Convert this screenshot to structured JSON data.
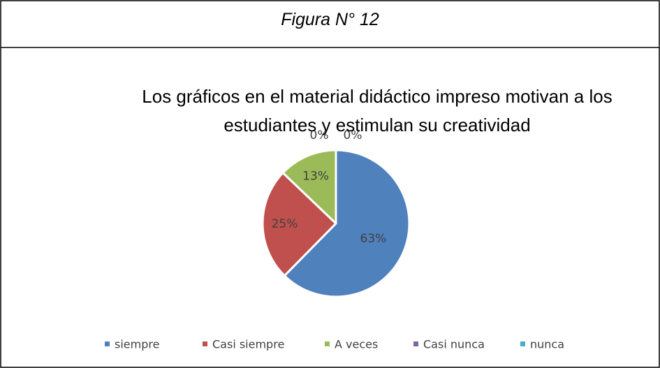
{
  "figure_label": "Figura N° 12",
  "chart_data": {
    "type": "pie",
    "title": "Los gráficos en el material didáctico impreso motivan a los estudiantes y estimulan su creatividad",
    "categories": [
      "siempre",
      "Casi siempre",
      "A veces",
      "Casi nunca",
      "nunca"
    ],
    "values": [
      63,
      25,
      13,
      0,
      0
    ],
    "value_labels": [
      "63%",
      "25%",
      "13%",
      "0%",
      "0%"
    ],
    "colors": [
      "#4f81bd",
      "#c0504d",
      "#9bbb59",
      "#8064a2",
      "#4bacc6"
    ],
    "legend": "bottom"
  }
}
